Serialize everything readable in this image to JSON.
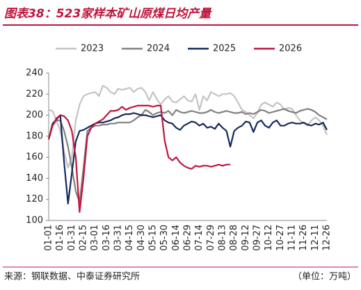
{
  "chart_data": {
    "type": "line",
    "title": "图表38：523家样本矿山原煤日均产量",
    "source": "来源：钢联数据、中泰证券研究所",
    "unit_note": "（单位：万吨）",
    "categories": [
      "01-01",
      null,
      null,
      "01-16",
      null,
      null,
      "01-31",
      null,
      null,
      "02-15",
      null,
      null,
      "03-01",
      null,
      null,
      "03-16",
      null,
      null,
      "03-31",
      null,
      null,
      "04-15",
      null,
      null,
      "04-30",
      null,
      null,
      "05-15",
      null,
      null,
      "05-30",
      null,
      null,
      "06-14",
      null,
      null,
      "06-29",
      null,
      null,
      "07-14",
      null,
      null,
      "07-29",
      null,
      null,
      "08-13",
      null,
      null,
      "08-28",
      null,
      null,
      "09-12",
      null,
      null,
      "09-27",
      null,
      null,
      "10-12",
      null,
      null,
      "10-27",
      null,
      null,
      "11-11",
      null,
      null,
      "11-26",
      null,
      null,
      "12-11",
      null,
      null,
      "12-26"
    ],
    "series": [
      {
        "name": "2023",
        "color": "#c3c3c3",
        "values": [
          205,
          204,
          195,
          185,
          165,
          150,
          160,
          195,
          210,
          218,
          220,
          221,
          222,
          218,
          228,
          226,
          222,
          220,
          225,
          224,
          225,
          226,
          222,
          225,
          226,
          222,
          214,
          222,
          215,
          210,
          215,
          218,
          213,
          212,
          215,
          218,
          214,
          213,
          220,
          205,
          218,
          214,
          222,
          220,
          218,
          220,
          220,
          221,
          218,
          212,
          205,
          203,
          200,
          197,
          202,
          210,
          212,
          210,
          208,
          212,
          210,
          205,
          207,
          206,
          200,
          195,
          192,
          190,
          195,
          198,
          195,
          190,
          181
        ]
      },
      {
        "name": "2024",
        "color": "#808080",
        "values": [
          178,
          190,
          195,
          195,
          185,
          170,
          150,
          128,
          117,
          150,
          185,
          188,
          190,
          190,
          191,
          191,
          192,
          192,
          193,
          193,
          193,
          193,
          195,
          198,
          200,
          205,
          203,
          200,
          202,
          203,
          202,
          204,
          200,
          205,
          203,
          202,
          203,
          204,
          203,
          202,
          202,
          203,
          205,
          203,
          202,
          203,
          204,
          203,
          202,
          202,
          203,
          201,
          202,
          201,
          203,
          205,
          204,
          202,
          203,
          204,
          205,
          206,
          204,
          203,
          202,
          204,
          205,
          206,
          205,
          203,
          200,
          198,
          196
        ]
      },
      {
        "name": "2025",
        "color": "#14285a",
        "values": [
          177,
          192,
          196,
          200,
          155,
          116,
          145,
          175,
          185,
          186,
          188,
          190,
          192,
          193,
          193,
          194,
          195,
          197,
          198,
          200,
          201,
          201,
          202,
          201,
          200,
          200,
          199,
          198,
          199,
          200,
          195,
          193,
          192,
          188,
          186,
          190,
          192,
          194,
          193,
          190,
          192,
          188,
          189,
          187,
          192,
          188,
          185,
          170,
          185,
          188,
          190,
          194,
          193,
          184,
          193,
          195,
          190,
          188,
          193,
          195,
          190,
          190,
          192,
          193,
          192,
          192,
          193,
          191,
          190,
          192,
          191,
          193,
          186
        ]
      },
      {
        "name": "2026",
        "color": "#c0143c",
        "values": [
          177,
          190,
          197,
          200,
          199,
          195,
          185,
          160,
          108,
          140,
          180,
          188,
          192,
          194,
          196,
          200,
          204,
          204,
          205,
          208,
          205,
          207,
          208,
          209,
          209,
          209,
          209,
          208,
          209,
          209,
          176,
          160,
          157,
          160,
          155,
          152,
          150,
          149,
          152,
          151,
          152,
          152,
          151,
          152,
          153,
          152,
          153,
          153,
          null,
          null,
          null,
          null,
          null,
          null,
          null,
          null,
          null,
          null,
          null,
          null,
          null,
          null,
          null,
          null,
          null,
          null,
          null,
          null,
          null,
          null,
          null,
          null,
          null
        ]
      }
    ],
    "ylim": [
      100,
      240
    ],
    "yticks": [
      100,
      120,
      140,
      160,
      180,
      200,
      220,
      240
    ]
  }
}
